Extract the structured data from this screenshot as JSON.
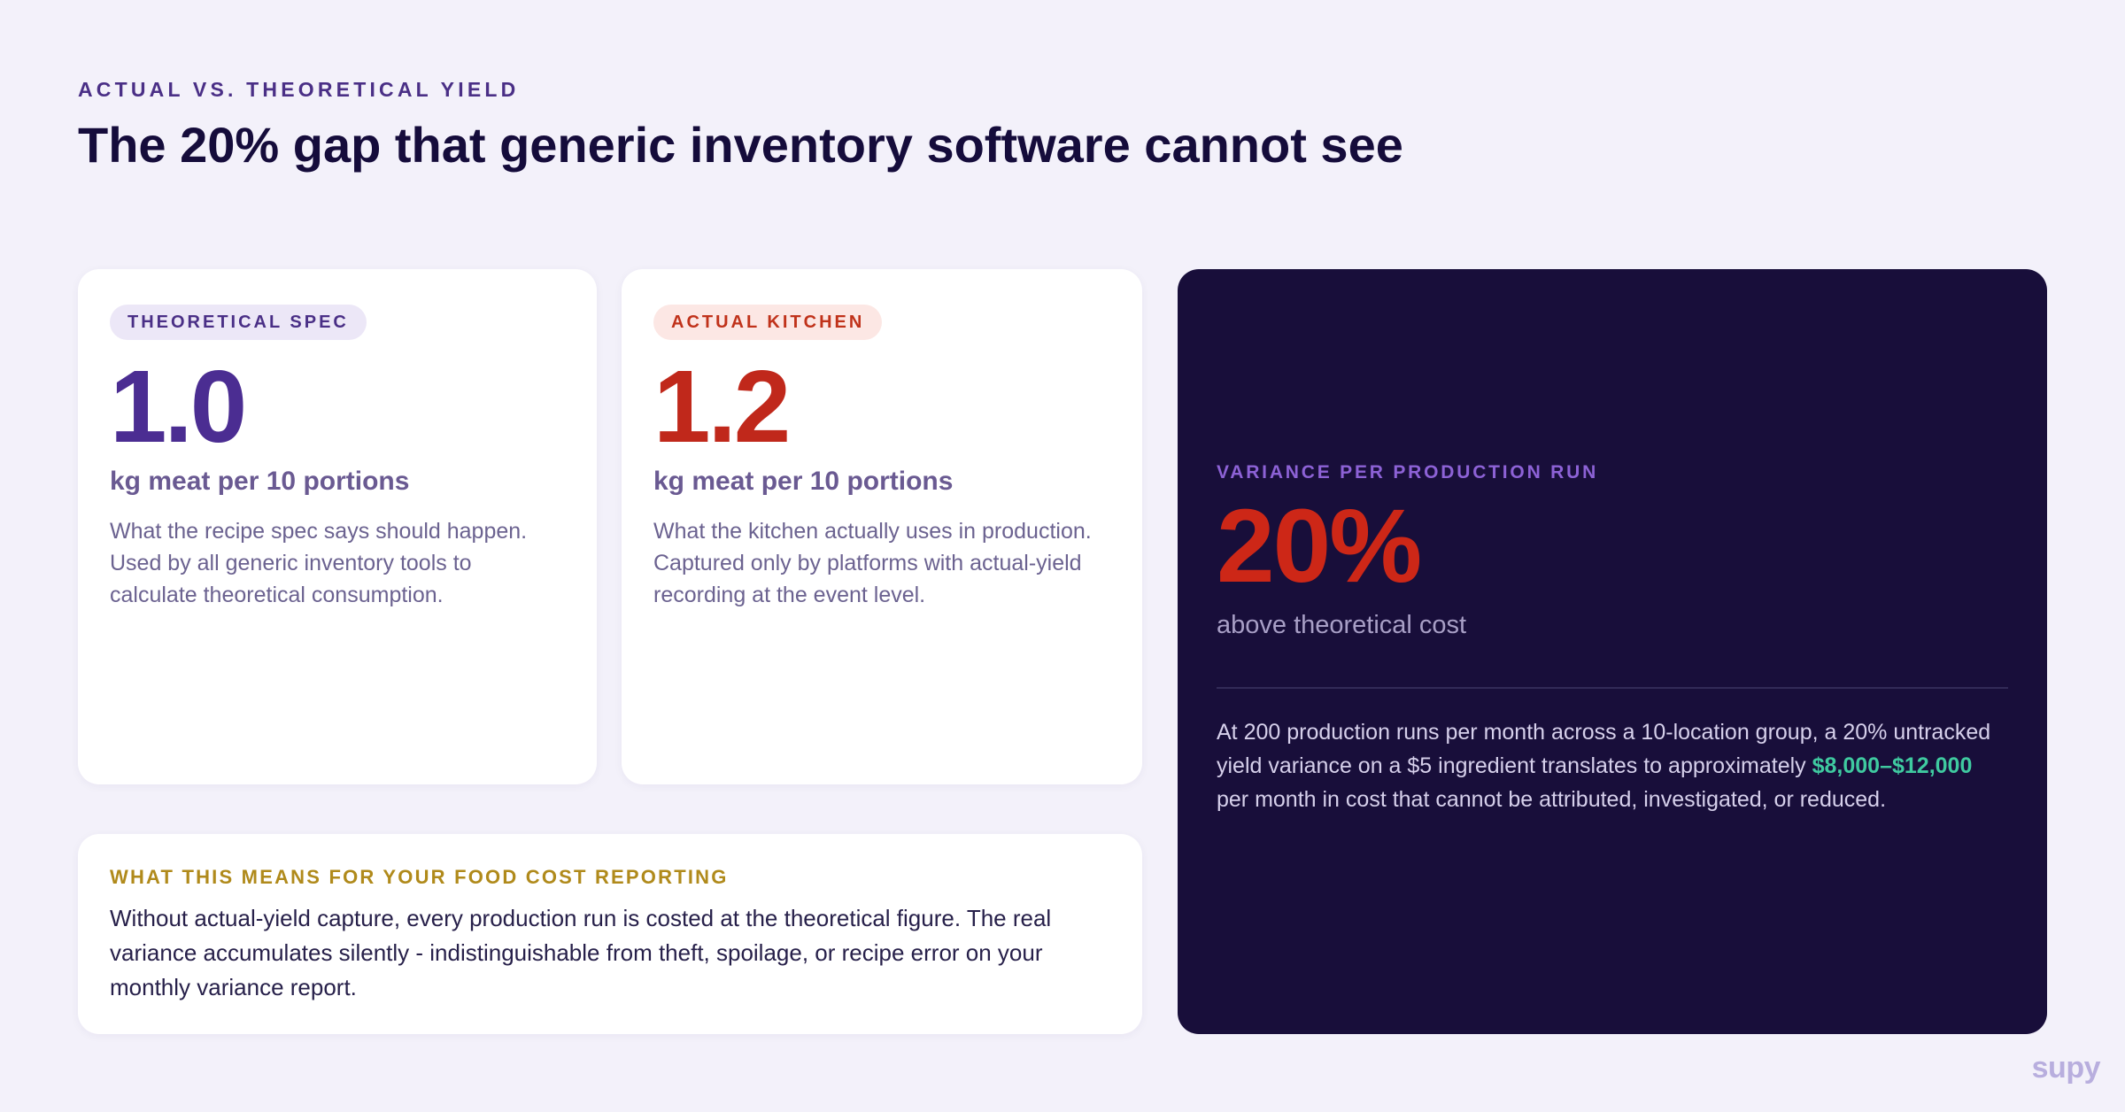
{
  "header": {
    "eyebrow": "ACTUAL VS. THEORETICAL YIELD",
    "title": "The 20% gap that generic inventory software cannot see"
  },
  "theoretical_card": {
    "pill": "THEORETICAL SPEC",
    "value": "1.0",
    "unit": "kg meat per 10 portions",
    "description": "What the recipe spec says should happen. Used by all generic inventory tools to calculate theoretical consumption."
  },
  "actual_card": {
    "pill": "ACTUAL KITCHEN",
    "value": "1.2",
    "unit": "kg meat per 10 portions",
    "description": "What the kitchen actually uses in production. Captured only by platforms with actual-yield recording at the event level."
  },
  "meaning_card": {
    "heading": "WHAT THIS MEANS FOR YOUR FOOD COST REPORTING",
    "body": "Without actual-yield capture, every production run is costed at the theoretical figure. The real variance accumulates silently - indistinguishable from theft, spoilage, or recipe error on your monthly variance report."
  },
  "variance_panel": {
    "eyebrow": "VARIANCE PER PRODUCTION RUN",
    "value": "20%",
    "subtitle": "above theoretical cost",
    "body_before": "At 200 production runs per month across a 10-location group, a 20% untracked yield variance on a $5 ingredient translates to approximately ",
    "highlight": "$8,000–$12,000",
    "body_after": " per month in cost that cannot be attributed, investigated, or reduced."
  },
  "brand": "supy",
  "colors": {
    "background": "#f3f1fa",
    "accent_purple": "#4b2d92",
    "accent_red": "#c0281b",
    "dark_panel": "#180e3a",
    "highlight_green": "#3fcaa0",
    "gold": "#b08a1b"
  }
}
